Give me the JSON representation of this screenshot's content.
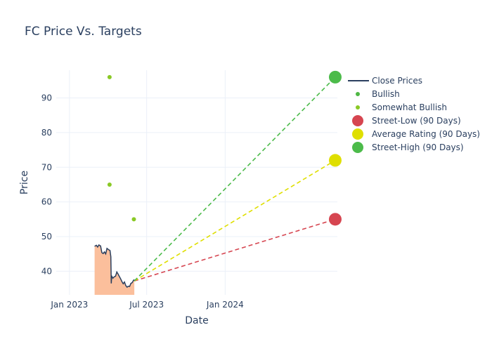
{
  "chart_data": {
    "type": "line",
    "title": "FC Price Vs. Targets",
    "xlabel": "Date",
    "ylabel": "Price",
    "x_range": [
      "2022-12-01",
      "2024-09-20"
    ],
    "y_range": [
      33.2,
      98
    ],
    "y_ticks": [
      40,
      50,
      60,
      70,
      80,
      90
    ],
    "x_ticks": [
      {
        "date": "2023-01-01",
        "label": "Jan 2023"
      },
      {
        "date": "2023-07-01",
        "label": "Jul 2023"
      },
      {
        "date": "2024-01-01",
        "label": "Jan 2024"
      }
    ],
    "grid": true,
    "legend_position": "right",
    "series": [
      {
        "name": "Close Prices",
        "kind": "line-area",
        "color": "#2a3f5f",
        "fill_color": "#fbbf9c",
        "points": [
          [
            "2023-03-01",
            47.2
          ],
          [
            "2023-03-05",
            47.5
          ],
          [
            "2023-03-08",
            47.0
          ],
          [
            "2023-03-11",
            47.6
          ],
          [
            "2023-03-15",
            47.3
          ],
          [
            "2023-03-18",
            45.4
          ],
          [
            "2023-03-21",
            45.1
          ],
          [
            "2023-03-24",
            45.6
          ],
          [
            "2023-03-27",
            45.0
          ],
          [
            "2023-03-30",
            46.6
          ],
          [
            "2023-04-03",
            46.2
          ],
          [
            "2023-04-06",
            46.0
          ],
          [
            "2023-04-08",
            44.2
          ],
          [
            "2023-04-09",
            36.5
          ],
          [
            "2023-04-10",
            38.6
          ],
          [
            "2023-04-13",
            38.0
          ],
          [
            "2023-04-16",
            38.4
          ],
          [
            "2023-04-19",
            38.6
          ],
          [
            "2023-04-22",
            39.8
          ],
          [
            "2023-04-25",
            39.2
          ],
          [
            "2023-04-28",
            38.5
          ],
          [
            "2023-05-01",
            37.8
          ],
          [
            "2023-05-04",
            37.0
          ],
          [
            "2023-05-07",
            36.4
          ],
          [
            "2023-05-10",
            36.9
          ],
          [
            "2023-05-13",
            35.9
          ],
          [
            "2023-05-16",
            35.4
          ],
          [
            "2023-05-19",
            35.7
          ],
          [
            "2023-05-22",
            35.6
          ],
          [
            "2023-05-25",
            36.5
          ],
          [
            "2023-05-28",
            36.7
          ],
          [
            "2023-05-31",
            37.4
          ],
          [
            "2023-06-02",
            37.6
          ]
        ]
      },
      {
        "name": "Bullish",
        "kind": "markers",
        "color": "#4fb844",
        "points": []
      },
      {
        "name": "Somewhat Bullish",
        "kind": "markers",
        "color": "#8ac926",
        "points": [
          [
            "2023-04-05",
            96
          ],
          [
            "2023-04-05",
            65
          ],
          [
            "2023-06-01",
            55
          ]
        ]
      },
      {
        "name": "Street-Low (90 Days)",
        "kind": "target",
        "color": "#d64550",
        "start": [
          "2023-06-02",
          37.2
        ],
        "end": [
          "2024-09-15",
          55
        ]
      },
      {
        "name": "Average Rating (90 Days)",
        "kind": "target",
        "color": "#dfdf00",
        "start": [
          "2023-06-02",
          37.2
        ],
        "end": [
          "2024-09-15",
          72
        ]
      },
      {
        "name": "Street-High (90 Days)",
        "kind": "target",
        "color": "#4cbb4a",
        "start": [
          "2023-06-02",
          37.2
        ],
        "end": [
          "2024-09-15",
          96
        ]
      }
    ]
  }
}
